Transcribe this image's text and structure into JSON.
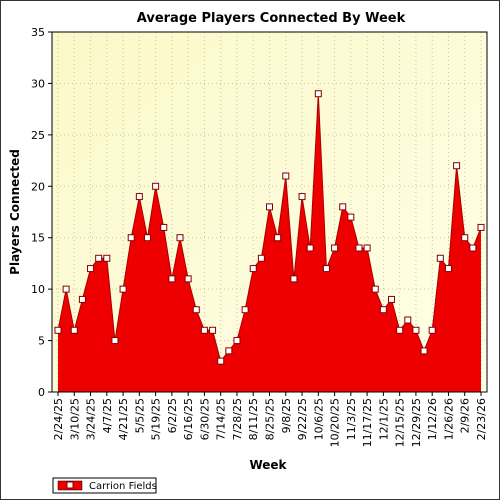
{
  "chart_data": {
    "type": "area",
    "title": "Average Players Connected By Week",
    "xlabel": "Week",
    "ylabel": "Players Connected",
    "ylim": [
      0,
      35
    ],
    "yticks": [
      0,
      5,
      10,
      15,
      20,
      25,
      30,
      35
    ],
    "grid": true,
    "legend_position": "bottom-left",
    "x_tick_labels": [
      "2/24/25",
      "3/10/25",
      "3/24/25",
      "4/7/25",
      "4/21/25",
      "5/5/25",
      "5/19/25",
      "6/2/25",
      "6/16/25",
      "6/30/25",
      "7/14/25",
      "7/28/25",
      "8/11/25",
      "8/25/25",
      "9/8/25",
      "9/22/25",
      "10/6/25",
      "10/20/25",
      "11/3/25",
      "11/17/25",
      "12/1/25",
      "12/15/25",
      "12/29/25",
      "1/12/26",
      "1/26/26",
      "2/9/26",
      "2/23/26"
    ],
    "x": [
      "2/24/25",
      "3/3/25",
      "3/10/25",
      "3/17/25",
      "3/24/25",
      "3/31/25",
      "4/7/25",
      "4/14/25",
      "4/21/25",
      "4/28/25",
      "5/5/25",
      "5/12/25",
      "5/19/25",
      "5/26/25",
      "6/2/25",
      "6/9/25",
      "6/16/25",
      "6/23/25",
      "6/30/25",
      "7/7/25",
      "7/14/25",
      "7/21/25",
      "7/28/25",
      "8/4/25",
      "8/11/25",
      "8/18/25",
      "8/25/25",
      "9/1/25",
      "9/8/25",
      "9/15/25",
      "9/22/25",
      "9/29/25",
      "10/6/25",
      "10/13/25",
      "10/20/25",
      "10/27/25",
      "11/3/25",
      "11/10/25",
      "11/17/25",
      "11/24/25",
      "12/1/25",
      "12/8/25",
      "12/15/25",
      "12/22/25",
      "12/29/25",
      "1/5/26",
      "1/12/26",
      "1/19/26",
      "1/26/26",
      "2/2/26",
      "2/9/26",
      "2/16/26",
      "2/23/26"
    ],
    "series": [
      {
        "name": "Carrion Fields",
        "color": "#ee0000",
        "values": [
          6,
          10,
          6,
          9,
          12,
          13,
          13,
          5,
          10,
          15,
          19,
          15,
          20,
          16,
          11,
          15,
          11,
          8,
          6,
          6,
          3,
          4,
          5,
          8,
          12,
          13,
          18,
          15,
          21,
          11,
          19,
          14,
          29,
          12,
          14,
          18,
          17,
          14,
          14,
          10,
          8,
          9,
          6,
          7,
          6,
          4,
          6,
          13,
          12,
          22,
          15,
          14,
          16
        ]
      }
    ]
  }
}
